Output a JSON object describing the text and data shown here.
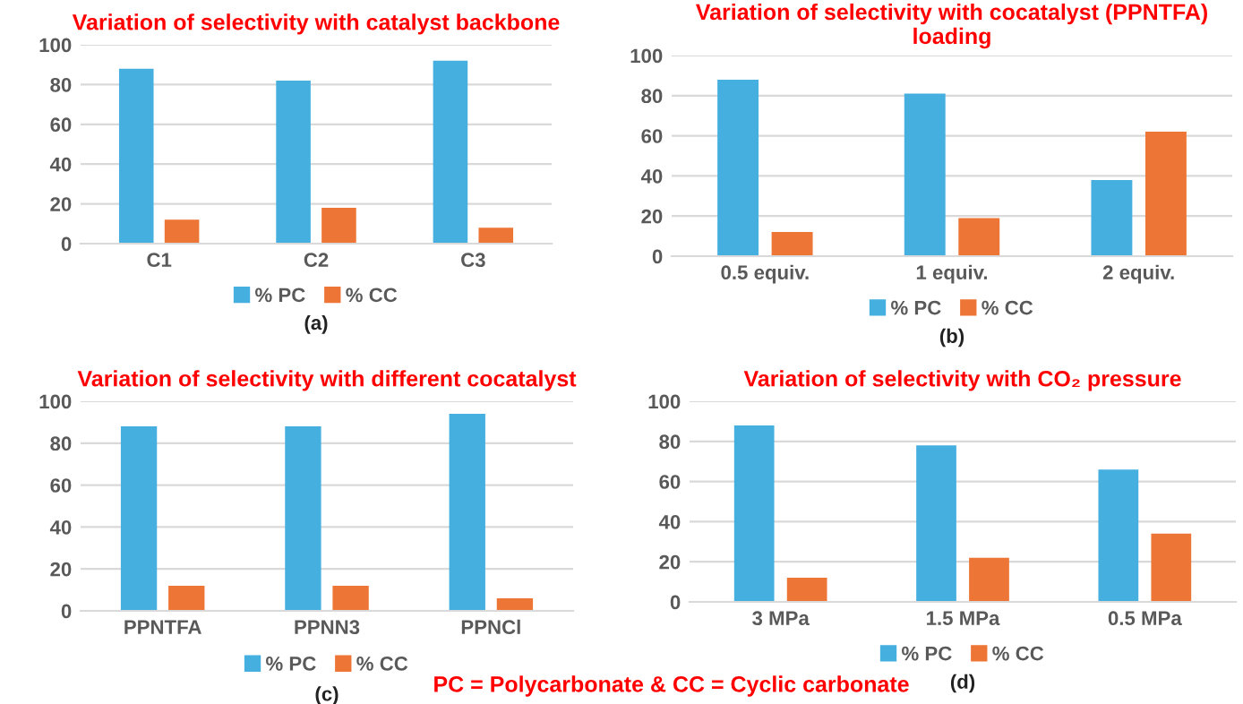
{
  "chart_data": [
    {
      "type": "bar",
      "title": "Variation of selectivity with catalyst backbone",
      "categories": [
        "C1",
        "C2",
        "C3"
      ],
      "series": [
        {
          "name": "% PC",
          "color": "#45b0e0",
          "values": [
            88,
            82,
            92
          ]
        },
        {
          "name": "% CC",
          "color": "#ed7535",
          "values": [
            12,
            18,
            8
          ]
        }
      ],
      "ylim": [
        0,
        100
      ],
      "yticks": [
        0,
        20,
        40,
        60,
        80,
        100
      ],
      "grid": "y",
      "legend": "bottom",
      "annotations": [
        "(a)"
      ]
    },
    {
      "type": "bar",
      "title": "Variation of selectivity with cocatalyst (PPNTFA) loading",
      "categories": [
        "0.5 equiv.",
        "1 equiv.",
        "2 equiv."
      ],
      "series": [
        {
          "name": "% PC",
          "color": "#45b0e0",
          "values": [
            88,
            81,
            38
          ]
        },
        {
          "name": "% CC",
          "color": "#ed7535",
          "values": [
            12,
            19,
            62
          ]
        }
      ],
      "ylim": [
        0,
        100
      ],
      "yticks": [
        0,
        20,
        40,
        60,
        80,
        100
      ],
      "grid": "y",
      "legend": "bottom",
      "annotations": [
        "(b)"
      ]
    },
    {
      "type": "bar",
      "title": "Variation of selectivity with different cocatalyst",
      "categories": [
        "PPNTFA",
        "PPNN3",
        "PPNCl"
      ],
      "series": [
        {
          "name": "% PC",
          "color": "#45b0e0",
          "values": [
            88,
            88,
            94
          ]
        },
        {
          "name": "% CC",
          "color": "#ed7535",
          "values": [
            12,
            12,
            6
          ]
        }
      ],
      "ylim": [
        0,
        100
      ],
      "yticks": [
        0,
        20,
        40,
        60,
        80,
        100
      ],
      "grid": "y",
      "legend": "bottom",
      "annotations": [
        "(c)",
        "PC = Polycarbonate & CC = Cyclic carbonate"
      ]
    },
    {
      "type": "bar",
      "title": "Variation of selectivity with CO₂ pressure",
      "categories": [
        "3 MPa",
        "1.5 MPa",
        "0.5 MPa"
      ],
      "series": [
        {
          "name": "% PC",
          "color": "#45b0e0",
          "values": [
            88,
            78,
            66
          ]
        },
        {
          "name": "% CC",
          "color": "#ed7535",
          "values": [
            12,
            22,
            34
          ]
        }
      ],
      "ylim": [
        0,
        100
      ],
      "yticks": [
        0,
        20,
        40,
        60,
        80,
        100
      ],
      "grid": "y",
      "legend": "bottom",
      "annotations": [
        "(d)"
      ]
    }
  ]
}
